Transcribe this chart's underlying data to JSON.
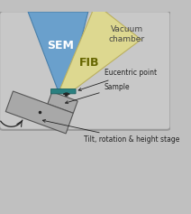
{
  "bg_outer": "#c0c0c0",
  "chamber_fill": "#c8c8c8",
  "chamber_edge": "#999999",
  "sem_fill": "#6aa0cc",
  "sem_edge": "#4a80aa",
  "fib_fill": "#ddd890",
  "fib_edge": "#bbb060",
  "stage_fill": "#a8a8a8",
  "stage_edge": "#555555",
  "euc_fill": "#2a8080",
  "euc_edge": "#1a6060",
  "arrow_color": "#222222",
  "label_color": "#222222",
  "sem_label": "SEM",
  "fib_label": "FIB",
  "euc_label": "Eucentric point",
  "sample_label": "Sample",
  "stage_label": "Tilt, rotation & height stage",
  "chamber_label": "Vacuum\nchamber",
  "sem_fontsize": 9,
  "fib_fontsize": 9,
  "label_fontsize": 5.5,
  "chamber_fontsize": 6.5
}
